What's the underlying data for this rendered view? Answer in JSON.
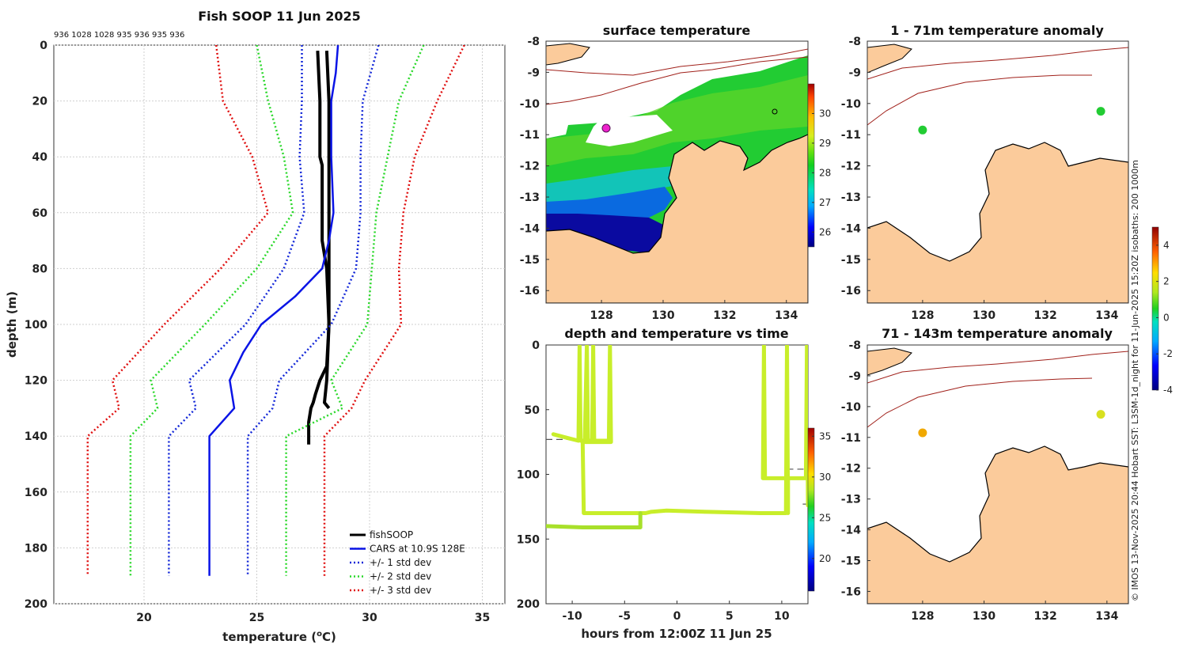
{
  "figure_title": "Fish SOOP 11 Jun 2025",
  "station_ids": "936 1028 1028 935 936 935 936",
  "colors": {
    "land": "#fbcb9b",
    "cars": "#0a14e6",
    "fish": "#000000",
    "sd1": "#1428d8",
    "sd2": "#2ad82a",
    "sd3": "#e01010",
    "isobath": "#a0201a",
    "track": "#c8ee2a"
  },
  "chart_data": [
    {
      "type": "line",
      "id": "profile",
      "title": "Fish SOOP 11 Jun 2025",
      "xlabel": "temperature (",
      "xlabel_unit": "o",
      "xlabel_suffix": "C)",
      "ylabel": "depth (m)",
      "xlim": [
        16,
        36
      ],
      "ylim": [
        200,
        0
      ],
      "xticks": [
        20,
        25,
        30,
        35
      ],
      "yticks": [
        0,
        20,
        40,
        60,
        80,
        100,
        120,
        140,
        160,
        180,
        200
      ],
      "legend": [
        "fishSOOP",
        "CARS at 10.9S 128E",
        "+/- 1 std dev",
        "+/- 2 std dev",
        "+/- 3 std dev"
      ],
      "series": [
        {
          "name": "fishSOOP",
          "depth": [
            2,
            20,
            40,
            43,
            60,
            70,
            75,
            80,
            100,
            115,
            120,
            125,
            128,
            130,
            135,
            143
          ],
          "temp": [
            27.7,
            27.8,
            27.8,
            27.9,
            27.9,
            27.9,
            28.0,
            28.1,
            28.2,
            28.1,
            27.8,
            27.6,
            27.5,
            27.4,
            27.3,
            27.3
          ]
        },
        {
          "name": "fishSOOP cast 2",
          "depth": [
            2,
            20,
            40,
            60,
            70,
            80,
            100,
            120,
            128,
            130
          ],
          "temp": [
            28.1,
            28.2,
            28.2,
            28.2,
            28.2,
            28.2,
            28.2,
            28.1,
            28.0,
            28.2
          ]
        },
        {
          "name": "CARS",
          "depth": [
            0,
            10,
            20,
            40,
            60,
            70,
            80,
            90,
            100,
            110,
            120,
            130,
            140,
            190
          ],
          "temp": [
            28.6,
            28.5,
            28.3,
            28.3,
            28.4,
            28.2,
            27.9,
            26.7,
            25.2,
            24.4,
            23.8,
            24.0,
            22.9,
            22.9
          ]
        },
        {
          "name": "-1 sd",
          "depth": [
            0,
            20,
            40,
            60,
            80,
            100,
            120,
            130,
            140,
            190
          ],
          "temp": [
            27.0,
            27.0,
            26.9,
            27.1,
            26.2,
            24.5,
            22.0,
            22.3,
            21.1,
            21.1
          ]
        },
        {
          "name": "+1 sd",
          "depth": [
            0,
            20,
            40,
            60,
            80,
            100,
            120,
            130,
            140,
            190
          ],
          "temp": [
            30.4,
            29.7,
            29.6,
            29.6,
            29.4,
            28.3,
            26.0,
            25.7,
            24.6,
            24.6
          ]
        },
        {
          "name": "-2 sd",
          "depth": [
            0,
            20,
            40,
            60,
            80,
            100,
            120,
            130,
            140,
            190
          ],
          "temp": [
            25.0,
            25.5,
            26.2,
            26.6,
            25.0,
            22.7,
            20.3,
            20.6,
            19.4,
            19.4
          ]
        },
        {
          "name": "+2 sd",
          "depth": [
            0,
            20,
            40,
            60,
            80,
            100,
            120,
            130,
            140,
            190
          ],
          "temp": [
            32.4,
            31.3,
            30.8,
            30.3,
            30.1,
            29.9,
            28.3,
            28.8,
            26.3,
            26.3
          ]
        },
        {
          "name": "-3 sd",
          "depth": [
            0,
            20,
            40,
            60,
            80,
            100,
            120,
            130,
            140,
            190
          ],
          "temp": [
            23.2,
            23.5,
            24.8,
            25.5,
            23.4,
            20.9,
            18.6,
            18.9,
            17.5,
            17.5
          ]
        },
        {
          "name": "+3 sd",
          "depth": [
            0,
            20,
            40,
            60,
            80,
            100,
            120,
            130,
            140,
            190
          ],
          "temp": [
            34.2,
            33.0,
            32.0,
            31.5,
            31.3,
            31.4,
            29.8,
            29.2,
            28.0,
            28.0
          ]
        }
      ]
    },
    {
      "type": "heatmap",
      "id": "sst",
      "title": "surface temperature",
      "xlim": [
        126.2,
        134.7
      ],
      "ylim": [
        -16.4,
        -8
      ],
      "xticks": [
        128,
        130,
        132,
        134
      ],
      "yticks": [
        -8,
        -9,
        -10,
        -11,
        -12,
        -13,
        -14,
        -15,
        -16
      ],
      "colorbar": {
        "min": 25.5,
        "max": 31,
        "ticks": [
          26,
          27,
          28,
          29,
          30
        ]
      }
    },
    {
      "type": "line",
      "id": "timeseries",
      "title": "depth and temperature vs time",
      "xlabel": "hours from 12:00Z 11 Jun 25",
      "xlim": [
        -12.5,
        12.5
      ],
      "ylim": [
        200,
        0
      ],
      "xticks": [
        -10,
        -5,
        0,
        5,
        10
      ],
      "yticks": [
        0,
        50,
        100,
        150,
        200
      ],
      "colorbar": {
        "min": 16,
        "max": 36,
        "ticks": [
          20,
          25,
          30,
          35
        ]
      },
      "track": [
        [
          -11.8,
          69
        ],
        [
          -10.4,
          72
        ],
        [
          -9.4,
          74
        ],
        [
          -9.3,
          0
        ],
        [
          -9.2,
          74
        ],
        [
          -8.8,
          74
        ],
        [
          -8.6,
          0
        ],
        [
          -8.5,
          74
        ],
        [
          -8.1,
          74
        ],
        [
          -8.0,
          0
        ],
        [
          -7.9,
          74
        ],
        [
          -6.5,
          74
        ],
        [
          -6.4,
          0
        ],
        [
          -6.3,
          74
        ],
        [
          -6.3,
          75
        ],
        [
          -6.4,
          75
        ],
        [
          -9.0,
          75
        ],
        [
          -8.9,
          130
        ],
        [
          -3.0,
          130
        ],
        [
          -2.5,
          129
        ],
        [
          -1.0,
          128
        ],
        [
          3.0,
          129
        ],
        [
          8.0,
          130
        ],
        [
          10.4,
          130
        ],
        [
          10.5,
          0
        ],
        [
          10.6,
          130
        ],
        [
          10.6,
          103
        ],
        [
          8.4,
          103
        ],
        [
          8.3,
          0
        ],
        [
          8.2,
          103
        ],
        [
          12.3,
          103
        ],
        [
          12.4,
          0
        ],
        [
          12.5,
          124
        ]
      ],
      "track2": [
        [
          -12.5,
          140
        ],
        [
          -9.0,
          141
        ],
        [
          -5.0,
          141
        ],
        [
          -3.5,
          141
        ],
        [
          -3.5,
          130
        ]
      ],
      "dashed": [
        [
          [
            -12.5,
            73
          ],
          [
            -6.3,
            73
          ]
        ],
        [
          [
            -12.5,
            141
          ],
          [
            -3.5,
            141
          ]
        ],
        [
          [
            -8.9,
            129
          ],
          [
            10.5,
            129
          ]
        ],
        [
          [
            10.5,
            96
          ],
          [
            12.5,
            96
          ]
        ],
        [
          [
            12.0,
            123
          ],
          [
            12.5,
            123
          ]
        ]
      ]
    },
    {
      "type": "heatmap",
      "id": "anom1",
      "title": "1 - 71m temperature anomaly",
      "xlim": [
        126.2,
        134.7
      ],
      "ylim": [
        -16.4,
        -8
      ],
      "xticks": [
        128,
        130,
        132,
        134
      ],
      "yticks": [
        -8,
        -9,
        -10,
        -11,
        -12,
        -13,
        -14,
        -15,
        -16
      ],
      "points": [
        {
          "lon": 128.0,
          "lat": -10.85,
          "value": 0.2
        },
        {
          "lon": 133.8,
          "lat": -10.25,
          "value": 0.3
        }
      ]
    },
    {
      "type": "heatmap",
      "id": "anom2",
      "title": "71 - 143m temperature anomaly",
      "xlim": [
        126.2,
        134.7
      ],
      "ylim": [
        -16.4,
        -8
      ],
      "xticks": [
        128,
        130,
        132,
        134
      ],
      "yticks": [
        -8,
        -9,
        -10,
        -11,
        -12,
        -13,
        -14,
        -15,
        -16
      ],
      "points": [
        {
          "lon": 128.0,
          "lat": -10.85,
          "value": 2.7
        },
        {
          "lon": 133.8,
          "lat": -10.25,
          "value": 2.4
        }
      ],
      "colorbar": {
        "min": -4,
        "max": 5,
        "ticks": [
          -4,
          -2,
          0,
          2,
          4
        ]
      }
    }
  ],
  "credit": "© IMOS 13-Nov-2025 20:44 Hobart SST: L3SM-1d_night for 11-Jun-2025 15:20Z isobaths: 200  1000m"
}
